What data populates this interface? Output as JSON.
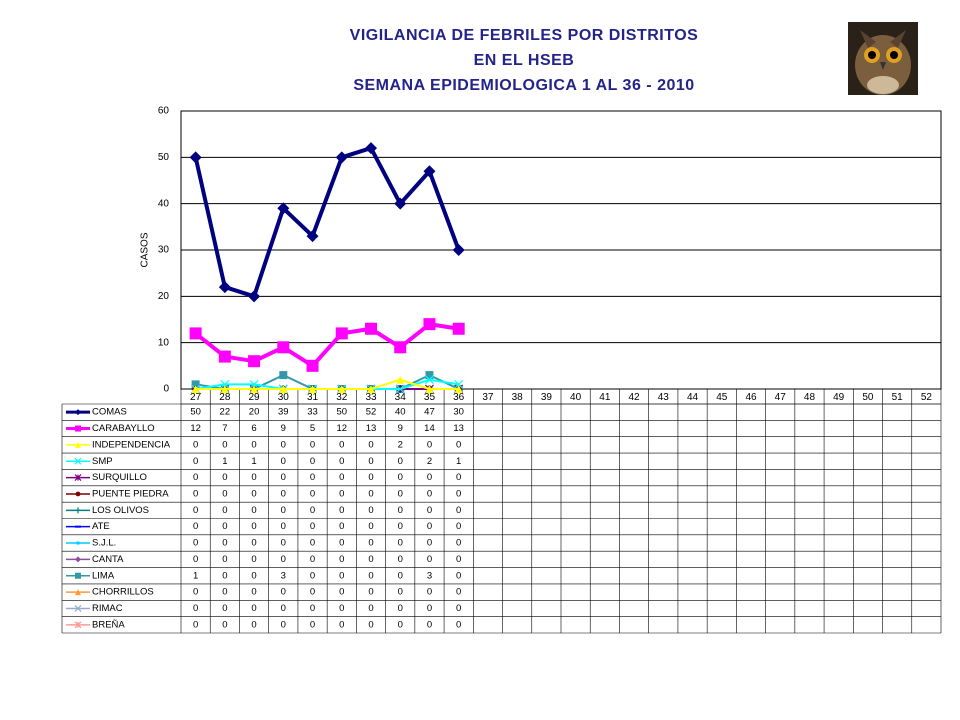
{
  "chart_data": {
    "type": "line",
    "title": [
      "VIGILANCIA DE FEBRILES POR DISTRITOS",
      "EN EL HSEB",
      "SEMANA EPIDEMIOLOGICA 1 AL 36 - 2010"
    ],
    "ylabel": "CASOS",
    "ylim": [
      0,
      60
    ],
    "yticks": [
      0,
      10,
      20,
      30,
      40,
      50,
      60
    ],
    "grid": true,
    "categories": [
      27,
      28,
      29,
      30,
      31,
      32,
      33,
      34,
      35,
      36,
      37,
      38,
      39,
      40,
      41,
      42,
      43,
      44,
      45,
      46,
      47,
      48,
      49,
      50,
      51,
      52
    ],
    "series": [
      {
        "name": "COMAS",
        "color": "#000080",
        "marker": "diamond",
        "values": [
          50,
          22,
          20,
          39,
          33,
          50,
          52,
          40,
          47,
          30,
          null,
          null,
          null,
          null,
          null,
          null,
          null,
          null,
          null,
          null,
          null,
          null,
          null,
          null,
          null,
          null
        ]
      },
      {
        "name": "CARABAYLLO",
        "color": "#ff00ff",
        "marker": "square",
        "values": [
          12,
          7,
          6,
          9,
          5,
          12,
          13,
          9,
          14,
          13,
          null,
          null,
          null,
          null,
          null,
          null,
          null,
          null,
          null,
          null,
          null,
          null,
          null,
          null,
          null,
          null
        ]
      },
      {
        "name": "INDEPENDENCIA",
        "color": "#ffff00",
        "marker": "triangle",
        "values": [
          0,
          0,
          0,
          0,
          0,
          0,
          0,
          2,
          0,
          0,
          null,
          null,
          null,
          null,
          null,
          null,
          null,
          null,
          null,
          null,
          null,
          null,
          null,
          null,
          null,
          null
        ]
      },
      {
        "name": "SMP",
        "color": "#00ffff",
        "marker": "x",
        "values": [
          0,
          1,
          1,
          0,
          0,
          0,
          0,
          0,
          2,
          1,
          null,
          null,
          null,
          null,
          null,
          null,
          null,
          null,
          null,
          null,
          null,
          null,
          null,
          null,
          null,
          null
        ]
      },
      {
        "name": "SURQUILLO",
        "color": "#800080",
        "marker": "star",
        "values": [
          0,
          0,
          0,
          0,
          0,
          0,
          0,
          0,
          0,
          0,
          null,
          null,
          null,
          null,
          null,
          null,
          null,
          null,
          null,
          null,
          null,
          null,
          null,
          null,
          null,
          null
        ]
      },
      {
        "name": "PUENTE PIEDRA",
        "color": "#800000",
        "marker": "circle",
        "values": [
          0,
          0,
          0,
          0,
          0,
          0,
          0,
          0,
          0,
          0,
          null,
          null,
          null,
          null,
          null,
          null,
          null,
          null,
          null,
          null,
          null,
          null,
          null,
          null,
          null,
          null
        ]
      },
      {
        "name": "LOS OLIVOS",
        "color": "#008080",
        "marker": "plus",
        "values": [
          0,
          0,
          0,
          0,
          0,
          0,
          0,
          0,
          0,
          0,
          null,
          null,
          null,
          null,
          null,
          null,
          null,
          null,
          null,
          null,
          null,
          null,
          null,
          null,
          null,
          null
        ]
      },
      {
        "name": "ATE",
        "color": "#0000ff",
        "marker": "dash",
        "values": [
          0,
          0,
          0,
          0,
          0,
          0,
          0,
          0,
          0,
          0,
          null,
          null,
          null,
          null,
          null,
          null,
          null,
          null,
          null,
          null,
          null,
          null,
          null,
          null,
          null,
          null
        ]
      },
      {
        "name": "S.J.L.",
        "color": "#00ccff",
        "marker": "smallsquare",
        "values": [
          0,
          0,
          0,
          0,
          0,
          0,
          0,
          0,
          0,
          0,
          null,
          null,
          null,
          null,
          null,
          null,
          null,
          null,
          null,
          null,
          null,
          null,
          null,
          null,
          null,
          null
        ]
      },
      {
        "name": "CANTA",
        "color": "#8a4f9e",
        "marker": "diamond",
        "values": [
          0,
          0,
          0,
          0,
          0,
          0,
          0,
          0,
          0,
          0,
          null,
          null,
          null,
          null,
          null,
          null,
          null,
          null,
          null,
          null,
          null,
          null,
          null,
          null,
          null,
          null
        ]
      },
      {
        "name": "LIMA",
        "color": "#3399aa",
        "marker": "square",
        "values": [
          1,
          0,
          0,
          3,
          0,
          0,
          0,
          0,
          3,
          0,
          null,
          null,
          null,
          null,
          null,
          null,
          null,
          null,
          null,
          null,
          null,
          null,
          null,
          null,
          null,
          null
        ]
      },
      {
        "name": "CHORRILLOS",
        "color": "#ff9933",
        "marker": "triangle",
        "values": [
          0,
          0,
          0,
          0,
          0,
          0,
          0,
          0,
          0,
          0,
          null,
          null,
          null,
          null,
          null,
          null,
          null,
          null,
          null,
          null,
          null,
          null,
          null,
          null,
          null,
          null
        ]
      },
      {
        "name": "RIMAC",
        "color": "#99aacc",
        "marker": "x",
        "values": [
          0,
          0,
          0,
          0,
          0,
          0,
          0,
          0,
          0,
          0,
          null,
          null,
          null,
          null,
          null,
          null,
          null,
          null,
          null,
          null,
          null,
          null,
          null,
          null,
          null,
          null
        ]
      },
      {
        "name": "BREÑA",
        "color": "#ff9999",
        "marker": "star",
        "values": [
          0,
          0,
          0,
          0,
          0,
          0,
          0,
          0,
          0,
          0,
          null,
          null,
          null,
          null,
          null,
          null,
          null,
          null,
          null,
          null,
          null,
          null,
          null,
          null,
          null,
          null
        ]
      }
    ]
  }
}
